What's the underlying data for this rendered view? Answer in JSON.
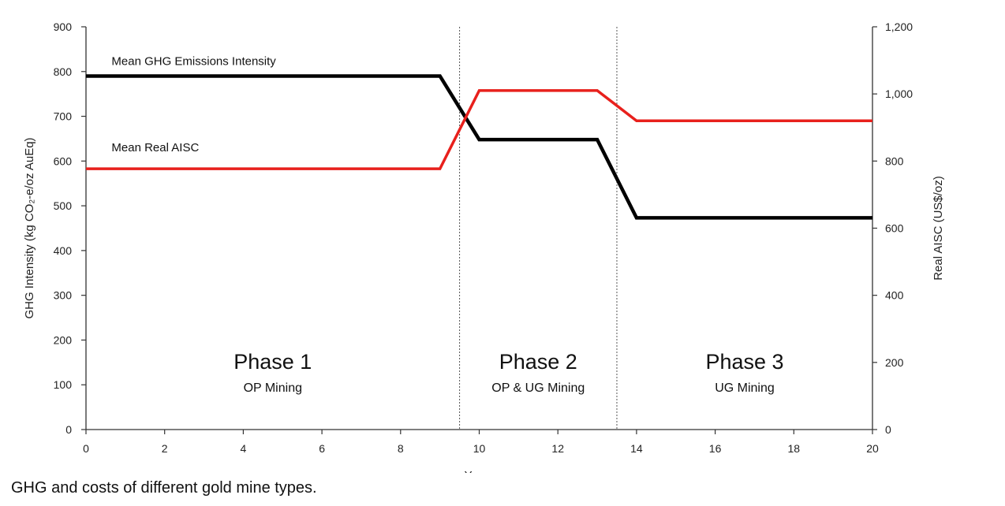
{
  "caption": "GHG and costs of different gold mine types.",
  "chart_data": {
    "type": "line",
    "xlabel": "Years",
    "ylabel_left": "GHG Intensity (kg CO₂-e/oz AuEq)",
    "ylabel_right": "Real AISC (US$/oz)",
    "xlim": [
      0,
      20
    ],
    "ylim_left": [
      0,
      900
    ],
    "ylim_right": [
      0,
      1200
    ],
    "x_ticks": [
      "0",
      "2",
      "4",
      "6",
      "8",
      "10",
      "12",
      "14",
      "16",
      "18",
      "20"
    ],
    "y_left_ticks": [
      "0",
      "100",
      "200",
      "300",
      "400",
      "500",
      "600",
      "700",
      "800",
      "900"
    ],
    "y_right_ticks": [
      "0",
      "200",
      "400",
      "600",
      "800",
      "1,000",
      "1,200"
    ],
    "grid": false,
    "series": [
      {
        "name": "Mean GHG Emissions Intensity",
        "axis": "left",
        "color": "#000000",
        "x": [
          0,
          9,
          10,
          13,
          14,
          20
        ],
        "y": [
          790,
          790,
          648,
          648,
          473,
          473
        ]
      },
      {
        "name": "Mean Real AISC",
        "axis": "right",
        "color": "#e8201c",
        "x": [
          0,
          9,
          10,
          13,
          14,
          20
        ],
        "y": [
          777,
          777,
          1010,
          1010,
          920,
          920
        ]
      }
    ],
    "phase_boundaries": [
      9.5,
      13.5
    ],
    "phases": [
      {
        "title": "Phase 1",
        "subtitle": "OP Mining",
        "x_center": 4.75
      },
      {
        "title": "Phase 2",
        "subtitle": "OP & UG Mining",
        "x_center": 11.5
      },
      {
        "title": "Phase 3",
        "subtitle": "UG Mining",
        "x_center": 16.75
      }
    ]
  }
}
